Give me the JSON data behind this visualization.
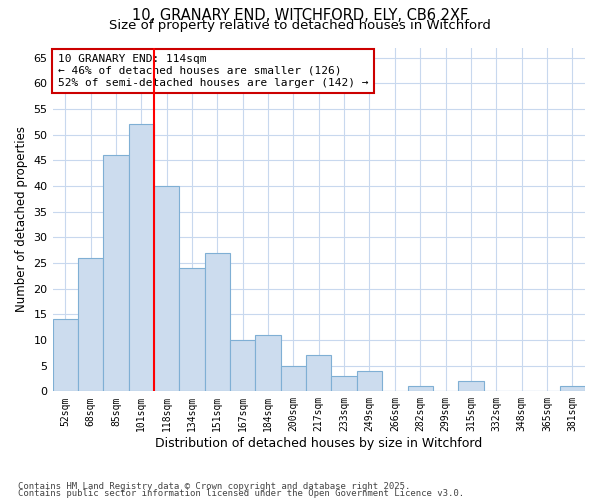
{
  "title_line1": "10, GRANARY END, WITCHFORD, ELY, CB6 2XF",
  "title_line2": "Size of property relative to detached houses in Witchford",
  "xlabel": "Distribution of detached houses by size in Witchford",
  "ylabel": "Number of detached properties",
  "categories": [
    "52sqm",
    "68sqm",
    "85sqm",
    "101sqm",
    "118sqm",
    "134sqm",
    "151sqm",
    "167sqm",
    "184sqm",
    "200sqm",
    "217sqm",
    "233sqm",
    "249sqm",
    "266sqm",
    "282sqm",
    "299sqm",
    "315sqm",
    "332sqm",
    "348sqm",
    "365sqm",
    "381sqm"
  ],
  "values": [
    14,
    26,
    46,
    52,
    40,
    24,
    27,
    10,
    11,
    5,
    7,
    3,
    4,
    0,
    1,
    0,
    2,
    0,
    0,
    0,
    1
  ],
  "bar_color": "#ccdcee",
  "bar_edge_color": "#7fafd4",
  "vline_x": 3.5,
  "vline_color": "red",
  "annotation_text": "10 GRANARY END: 114sqm\n← 46% of detached houses are smaller (126)\n52% of semi-detached houses are larger (142) →",
  "annotation_box_color": "white",
  "annotation_box_edge": "#cc0000",
  "ylim": [
    0,
    67
  ],
  "yticks": [
    0,
    5,
    10,
    15,
    20,
    25,
    30,
    35,
    40,
    45,
    50,
    55,
    60,
    65
  ],
  "bg_color": "#ffffff",
  "plot_bg_color": "#ffffff",
  "grid_color": "#c8d8ee",
  "footer_line1": "Contains HM Land Registry data © Crown copyright and database right 2025.",
  "footer_line2": "Contains public sector information licensed under the Open Government Licence v3.0."
}
